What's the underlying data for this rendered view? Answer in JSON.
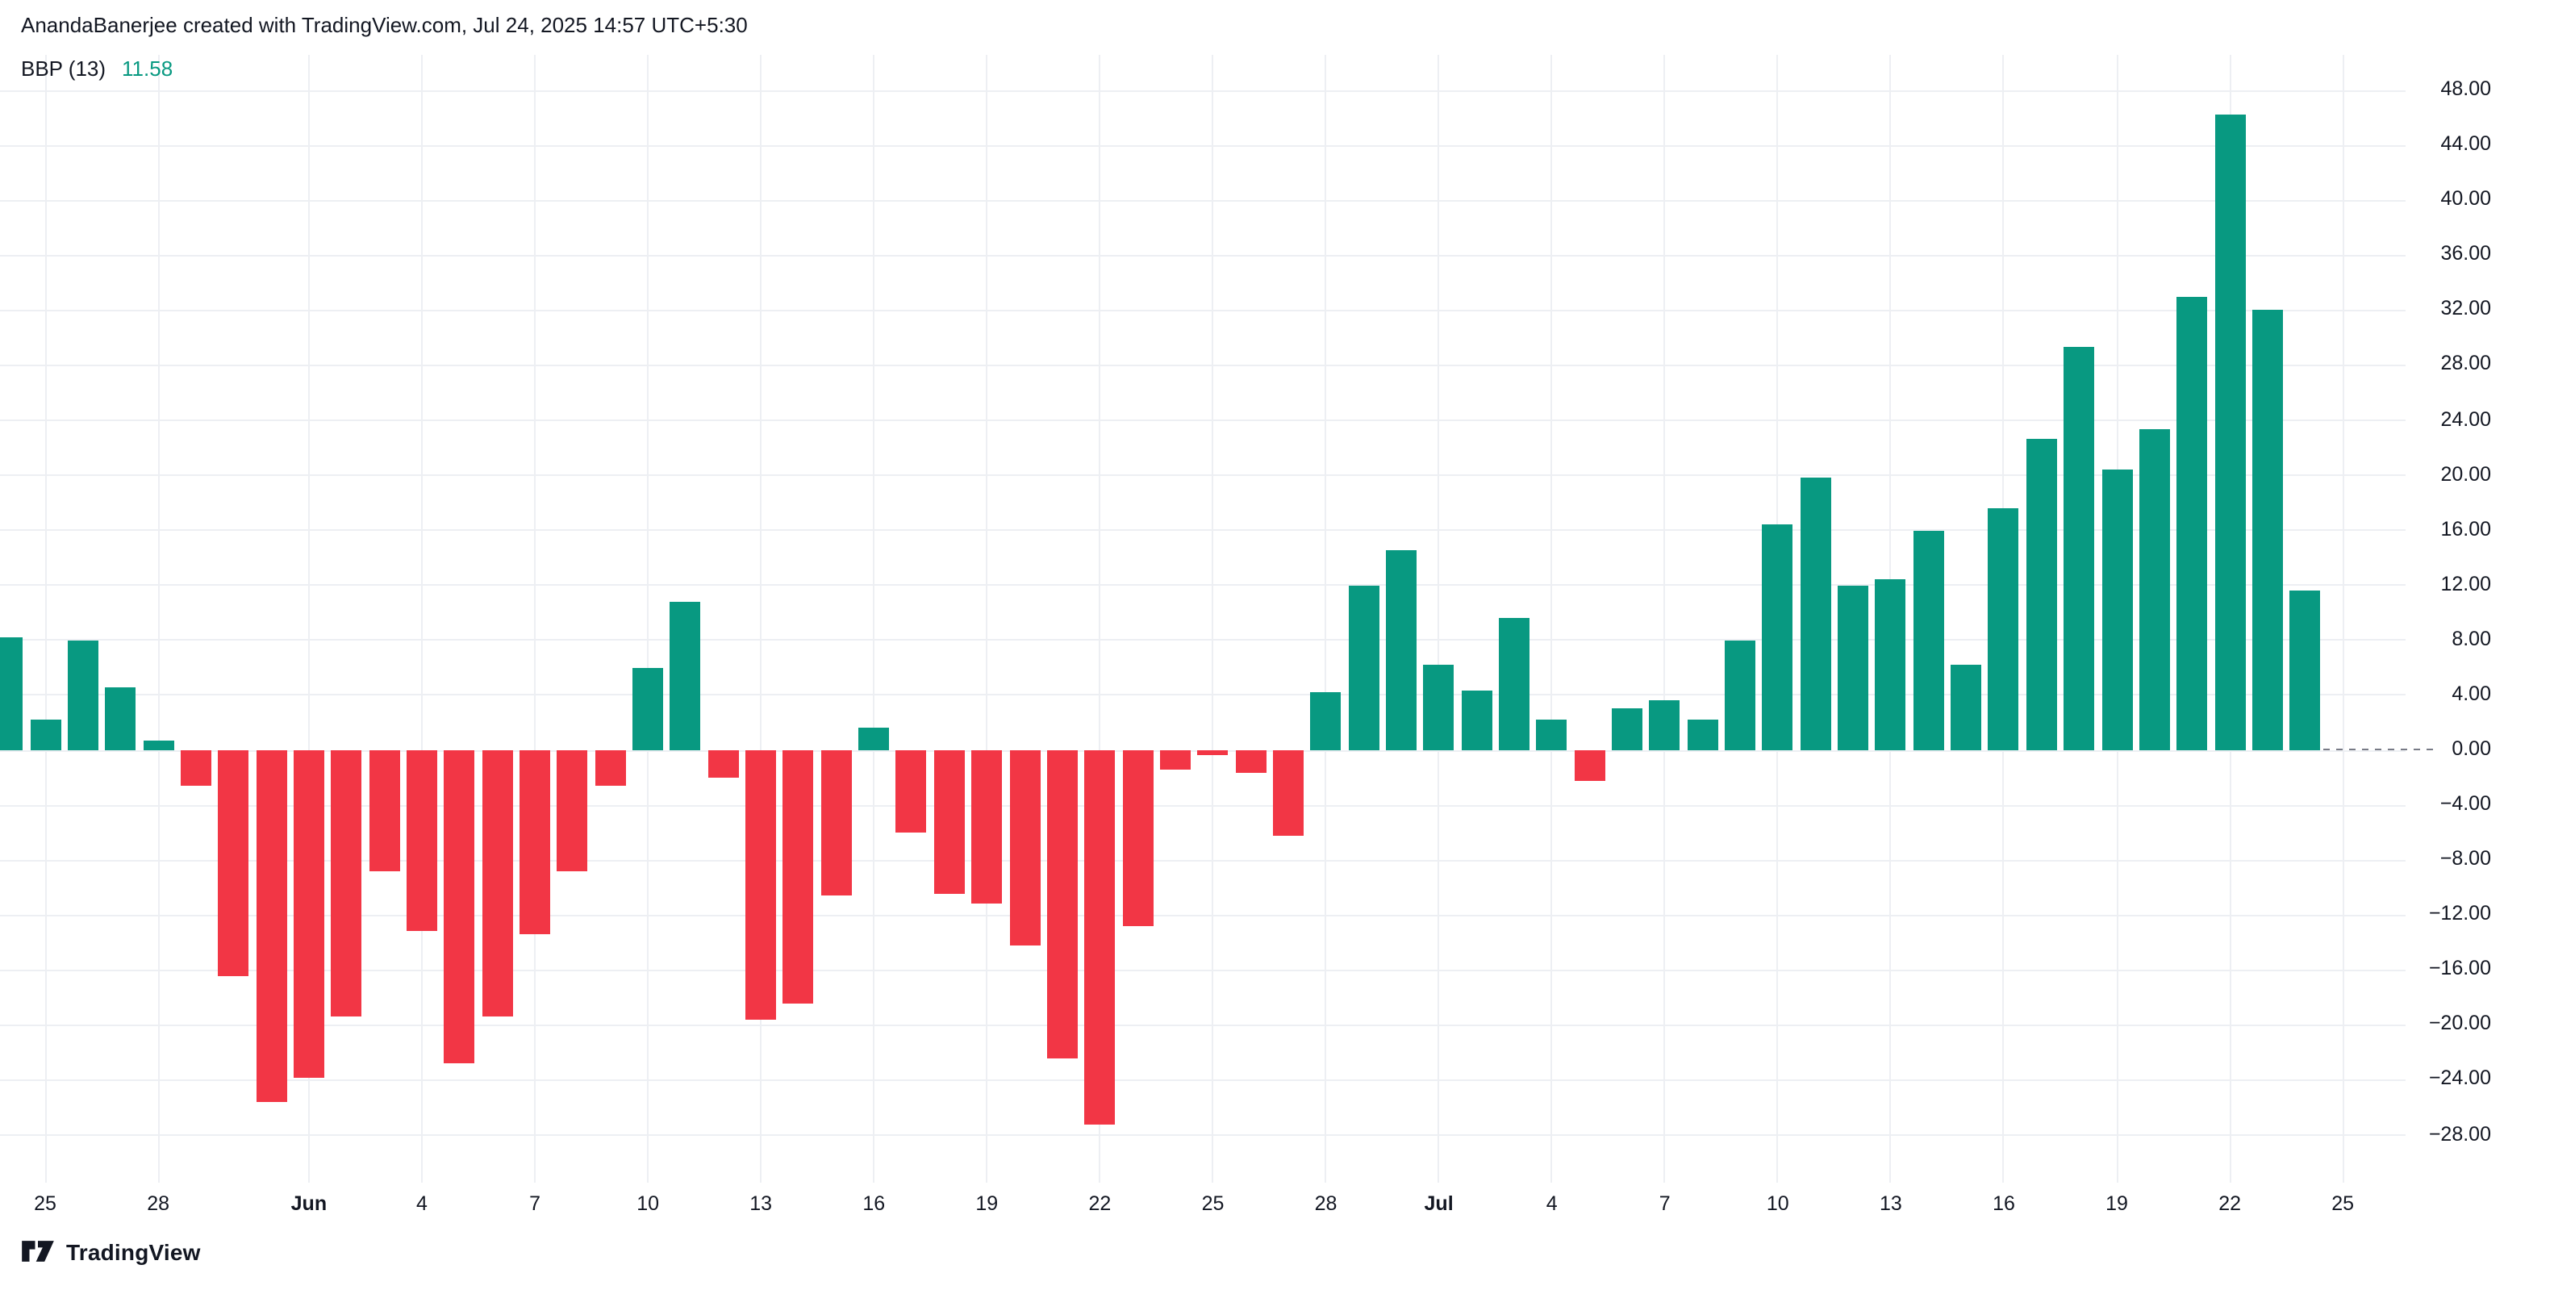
{
  "header": {
    "attribution": "AnandaBanerjee created with TradingView.com, Jul 24, 2025 14:57 UTC+5:30",
    "indicator": {
      "label": "BBP (13)",
      "value": "11.58"
    }
  },
  "footer": {
    "logo_text": "TradingView"
  },
  "colors": {
    "positive": "#089981",
    "negative": "#f23645",
    "value_accent": "#089981",
    "text": "#131722",
    "grid": "#edeff3",
    "dashed_line": "#787b86"
  },
  "chart_data": {
    "type": "bar",
    "title": "BBP (13) — Bull Bear Power histogram",
    "current_value": 11.58,
    "grid": true,
    "legend_position": "none",
    "x": [
      "May 24",
      "May 25",
      "May 26",
      "May 27",
      "May 28",
      "May 29",
      "May 30",
      "May 31",
      "Jun 1",
      "Jun 2",
      "Jun 3",
      "Jun 4",
      "Jun 5",
      "Jun 6",
      "Jun 7",
      "Jun 8",
      "Jun 9",
      "Jun 10",
      "Jun 11",
      "Jun 12",
      "Jun 13",
      "Jun 14",
      "Jun 15",
      "Jun 16",
      "Jun 17",
      "Jun 18",
      "Jun 19",
      "Jun 20",
      "Jun 21",
      "Jun 22",
      "Jun 23",
      "Jun 24",
      "Jun 25",
      "Jun 26",
      "Jun 27",
      "Jun 28",
      "Jun 29",
      "Jun 30",
      "Jul 1",
      "Jul 2",
      "Jul 3",
      "Jul 4",
      "Jul 5",
      "Jul 6",
      "Jul 7",
      "Jul 8",
      "Jul 9",
      "Jul 10",
      "Jul 11",
      "Jul 12",
      "Jul 13",
      "Jul 14",
      "Jul 15",
      "Jul 16",
      "Jul 17",
      "Jul 18",
      "Jul 19",
      "Jul 20",
      "Jul 21",
      "Jul 22",
      "Jul 23",
      "Jul 24"
    ],
    "values": [
      8.2,
      2.2,
      8.0,
      4.6,
      0.7,
      -2.6,
      -16.4,
      -25.6,
      -23.8,
      -19.4,
      -8.8,
      -13.2,
      -22.8,
      -19.4,
      -13.4,
      -8.8,
      -2.6,
      6.0,
      10.8,
      -2.0,
      -19.6,
      -18.4,
      -10.6,
      1.6,
      -6.0,
      -10.4,
      -11.2,
      -14.2,
      -22.4,
      -27.2,
      -12.8,
      -1.4,
      -0.4,
      -1.6,
      -6.2,
      4.2,
      12.0,
      14.6,
      6.2,
      4.4,
      9.6,
      2.2,
      -2.2,
      3.0,
      3.6,
      2.2,
      8.0,
      16.4,
      19.8,
      12.0,
      12.4,
      16.0,
      6.2,
      17.6,
      22.6,
      29.4,
      20.4,
      23.4,
      33.0,
      46.2,
      32.0,
      11.58
    ],
    "y_axis": {
      "min": -28,
      "max": 48,
      "step": 4,
      "ticks": [
        {
          "value": 48,
          "label": "48.00"
        },
        {
          "value": 44,
          "label": "44.00"
        },
        {
          "value": 40,
          "label": "40.00"
        },
        {
          "value": 36,
          "label": "36.00"
        },
        {
          "value": 32,
          "label": "32.00"
        },
        {
          "value": 28,
          "label": "28.00"
        },
        {
          "value": 24,
          "label": "24.00"
        },
        {
          "value": 20,
          "label": "20.00"
        },
        {
          "value": 16,
          "label": "16.00"
        },
        {
          "value": 12,
          "label": "12.00"
        },
        {
          "value": 8,
          "label": "8.00"
        },
        {
          "value": 4,
          "label": "4.00"
        },
        {
          "value": 0,
          "label": "0.00"
        },
        {
          "value": -4,
          "label": "−4.00"
        },
        {
          "value": -8,
          "label": "−8.00"
        },
        {
          "value": -12,
          "label": "−12.00"
        },
        {
          "value": -16,
          "label": "−16.00"
        },
        {
          "value": -20,
          "label": "−20.00"
        },
        {
          "value": -24,
          "label": "−24.00"
        },
        {
          "value": -28,
          "label": "−28.00"
        }
      ]
    },
    "x_axis": {
      "ticks": [
        {
          "index": 1,
          "label": "25",
          "bold": false
        },
        {
          "index": 4,
          "label": "28",
          "bold": false
        },
        {
          "index": 8,
          "label": "Jun",
          "bold": true
        },
        {
          "index": 11,
          "label": "4",
          "bold": false
        },
        {
          "index": 14,
          "label": "7",
          "bold": false
        },
        {
          "index": 17,
          "label": "10",
          "bold": false
        },
        {
          "index": 20,
          "label": "13",
          "bold": false
        },
        {
          "index": 23,
          "label": "16",
          "bold": false
        },
        {
          "index": 26,
          "label": "19",
          "bold": false
        },
        {
          "index": 29,
          "label": "22",
          "bold": false
        },
        {
          "index": 32,
          "label": "25",
          "bold": false
        },
        {
          "index": 35,
          "label": "28",
          "bold": false
        },
        {
          "index": 38,
          "label": "Jul",
          "bold": true
        },
        {
          "index": 41,
          "label": "4",
          "bold": false
        },
        {
          "index": 44,
          "label": "7",
          "bold": false
        },
        {
          "index": 47,
          "label": "10",
          "bold": false
        },
        {
          "index": 50,
          "label": "13",
          "bold": false
        },
        {
          "index": 53,
          "label": "16",
          "bold": false
        },
        {
          "index": 56,
          "label": "19",
          "bold": false
        },
        {
          "index": 59,
          "label": "22",
          "bold": false
        },
        {
          "index": 62,
          "label": "25",
          "bold": false
        }
      ]
    },
    "zero_line": {
      "value": 0,
      "style": "dashed"
    }
  }
}
